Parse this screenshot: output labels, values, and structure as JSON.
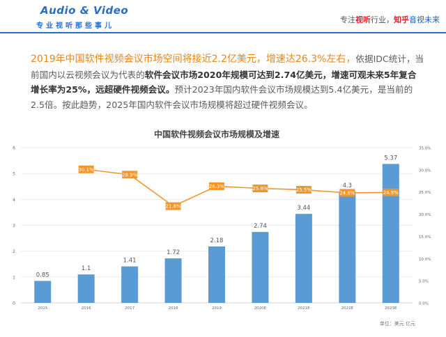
{
  "header": {
    "logo_title": "Audio & Video",
    "logo_subtitle": "专业视听那些事儿",
    "slogan_part1": "专注",
    "slogan_part2": "视听",
    "slogan_part3": "行业，",
    "slogan_part4": "知乎",
    "slogan_part5": "音视未来"
  },
  "paragraph": {
    "s1": "2019年中国软件视频会议市场空间将接近2.2亿美元，增速达26.3%左右，",
    "s2": "依据IDC统计，当前国内以云视频会议为代表的",
    "s3": "软件会议市场2020年规模可达到2.74亿美元，增速可观未来5年复合增长率为25%，远超硬件视频会议。",
    "s4": "预计2023年国内软件会议市场规模达到5.4亿美元，是当前的2.5倍。按此趋势，2025年国内软件会议市场规模将超过硬件视频会议。"
  },
  "chart_data": {
    "type": "bar",
    "title": "中国软件视频会议市场规模及增速",
    "categories": [
      "2015",
      "2016",
      "2017",
      "2018",
      "2019",
      "2020E",
      "2021E",
      "2022E",
      "2023E"
    ],
    "series": [
      {
        "values": [
          0.85,
          1.1,
          1.41,
          1.72,
          2.18,
          2.74,
          3.44,
          4.3,
          5.37
        ],
        "color": "#5b9bd5",
        "type": "bar",
        "axis": "left"
      },
      {
        "values": [
          null,
          30.1,
          28.9,
          21.8,
          26.3,
          25.8,
          25.5,
          24.8,
          24.9
        ],
        "color": "#f0962a",
        "type": "line",
        "axis": "right"
      }
    ],
    "bar_labels": [
      "0.85",
      "1.1",
      "1.41",
      "1.72",
      "2.18",
      "2.74",
      "3.44",
      "4.3",
      "5.37"
    ],
    "line_labels": [
      "",
      "30.1%",
      "28.9%",
      "21.8%",
      "26.3%",
      "25.8%",
      "25.5%",
      "24.8%",
      "24.9%"
    ],
    "left_axis": {
      "range": [
        0,
        6
      ],
      "ticks": [
        "0",
        "1",
        "2",
        "3",
        "4",
        "5",
        "6"
      ]
    },
    "right_axis": {
      "range": [
        0,
        35
      ],
      "ticks": [
        "0.0%",
        "5.0%",
        "10.0%",
        "15.0%",
        "20.0%",
        "25.0%",
        "30.0%",
        "35.0%"
      ]
    },
    "grid": true,
    "unit_note": "单位：美元 亿元"
  }
}
